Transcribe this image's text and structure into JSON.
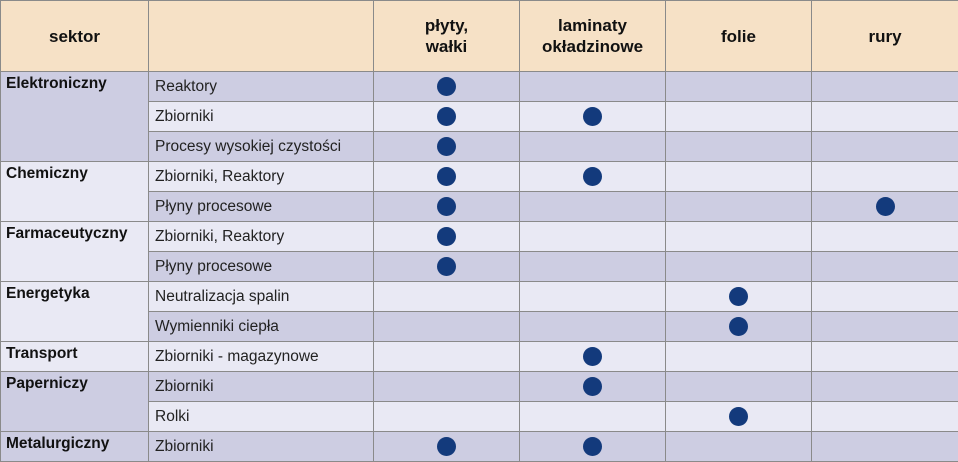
{
  "columns": {
    "sector": "sektor",
    "application": "",
    "plates": [
      "płyty,",
      "wałki"
    ],
    "laminates": [
      "laminaty",
      "okładzinowe"
    ],
    "films": "folie",
    "pipes": "rury"
  },
  "sectors": [
    {
      "name": "Elektroniczny",
      "rows": [
        {
          "app": "Reaktory",
          "marks": [
            true,
            false,
            false,
            false
          ]
        },
        {
          "app": "Zbiorniki",
          "marks": [
            true,
            true,
            false,
            false
          ]
        },
        {
          "app": "Procesy wysokiej czystości",
          "marks": [
            true,
            false,
            false,
            false
          ]
        }
      ]
    },
    {
      "name": "Chemiczny",
      "rows": [
        {
          "app": "Zbiorniki, Reaktory",
          "marks": [
            true,
            true,
            false,
            false
          ]
        },
        {
          "app": "Płyny procesowe",
          "marks": [
            true,
            false,
            false,
            true
          ]
        }
      ]
    },
    {
      "name": "Farmaceutyczny",
      "rows": [
        {
          "app": "Zbiorniki, Reaktory",
          "marks": [
            true,
            false,
            false,
            false
          ]
        },
        {
          "app": "Płyny procesowe",
          "marks": [
            true,
            false,
            false,
            false
          ]
        }
      ]
    },
    {
      "name": "Energetyka",
      "rows": [
        {
          "app": "Neutralizacja spalin",
          "marks": [
            false,
            false,
            true,
            false
          ]
        },
        {
          "app": "Wymienniki ciepła",
          "marks": [
            false,
            false,
            true,
            false
          ]
        }
      ]
    },
    {
      "name": "Transport",
      "rows": [
        {
          "app": "Zbiorniki - magazynowe",
          "marks": [
            false,
            true,
            false,
            false
          ]
        }
      ]
    },
    {
      "name": "Paperniczy",
      "rows": [
        {
          "app": "Zbiorniki",
          "marks": [
            false,
            true,
            false,
            false
          ]
        },
        {
          "app": "Rolki",
          "marks": [
            false,
            false,
            true,
            false
          ]
        }
      ]
    },
    {
      "name": "Metalurgiczny",
      "rows": [
        {
          "app": "Zbiorniki",
          "marks": [
            true,
            true,
            false,
            false
          ]
        }
      ]
    }
  ],
  "colors": {
    "header_bg": "#f6e1c6",
    "row_dark": "#cdcde2",
    "row_light": "#e9e9f4",
    "dot": "#133a7c",
    "border": "#8a8a8a"
  },
  "icons": {
    "mark": "filled-circle-icon"
  }
}
